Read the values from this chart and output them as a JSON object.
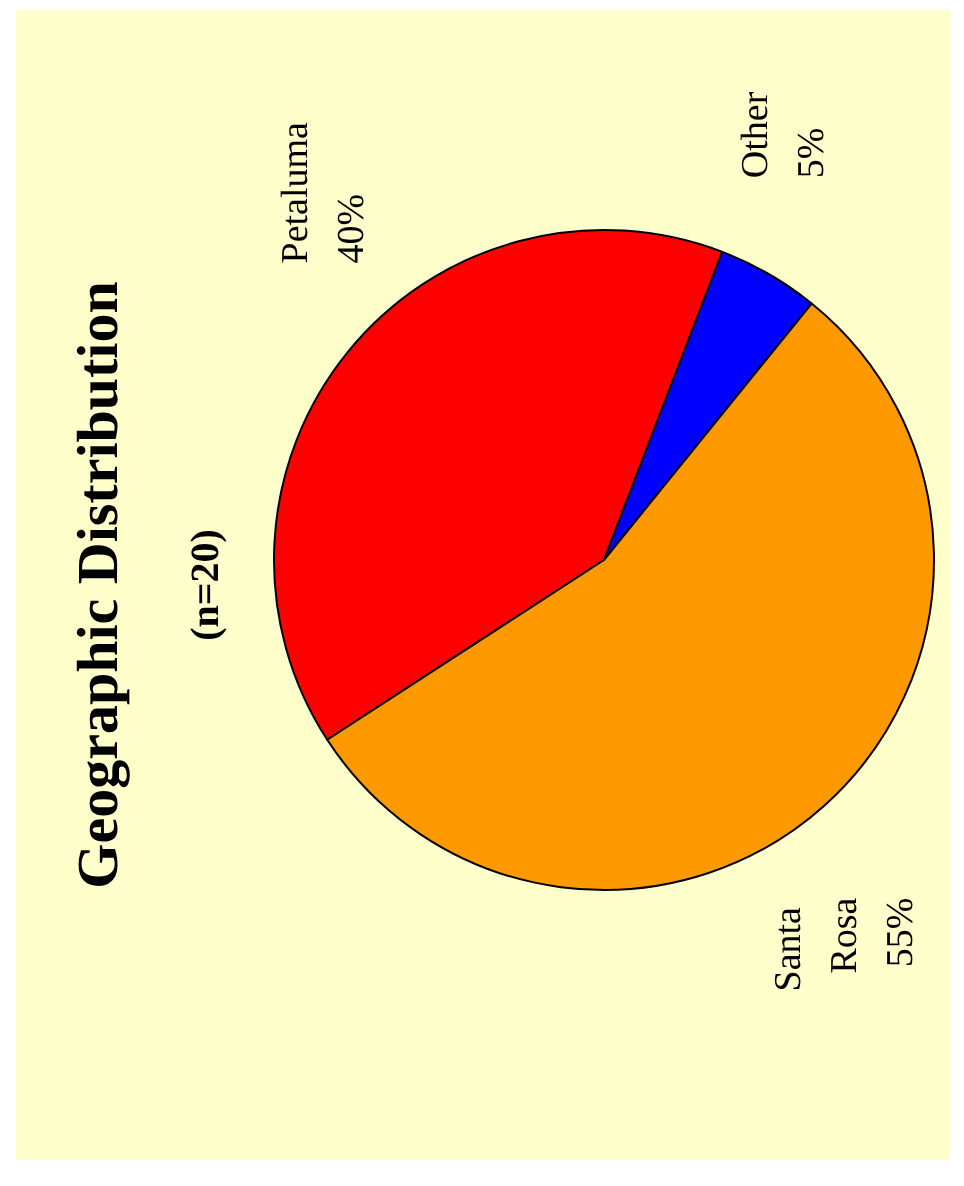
{
  "chart_data": {
    "type": "pie",
    "title": "Geographic Distribution",
    "subtitle": "(n=20)",
    "categories": [
      "Petaluma",
      "Other",
      "Santa Rosa"
    ],
    "values": [
      40,
      5,
      55
    ],
    "colors": [
      "#ff0000",
      "#0000ff",
      "#ff9900"
    ],
    "value_labels": [
      "40%",
      "5%",
      "55%"
    ],
    "legend": false
  }
}
